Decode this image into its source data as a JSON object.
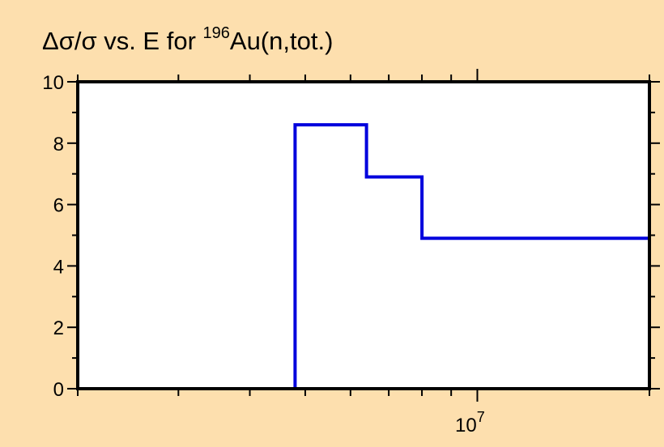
{
  "chart_data": {
    "type": "line",
    "step": true,
    "title_prefix": "Δσ/σ vs. E for ",
    "title_superscript": "196",
    "title_suffix": "Au(n,tot.)",
    "xlabel": "",
    "ylabel": "",
    "x_scale": "log",
    "xlim": [
      2000000,
      20000000
    ],
    "ylim": [
      0,
      10
    ],
    "y_ticks": [
      "0",
      "2",
      "4",
      "6",
      "8",
      "10"
    ],
    "x_tick_label_base": "10",
    "x_tick_label_exp": "7",
    "grid": false,
    "series": [
      {
        "color": "#0000dd",
        "x": [
          4800000,
          4800000,
          6400000,
          6400000,
          8000000,
          8000000,
          20000000,
          20000000
        ],
        "y": [
          0,
          8.6,
          8.6,
          6.9,
          6.9,
          4.9,
          4.9,
          0
        ]
      }
    ],
    "colors": {
      "background": "#fddfae",
      "plot_area": "#ffffff",
      "line": "#0000dd",
      "axes": "#000000"
    }
  }
}
